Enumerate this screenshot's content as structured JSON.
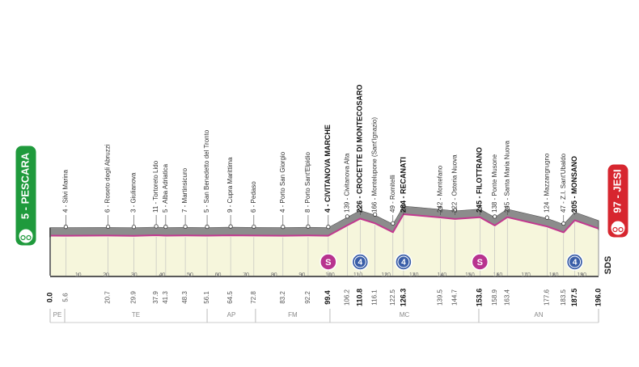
{
  "chart_data": {
    "type": "elevation-profile",
    "start": {
      "label": "5 - PESCARA",
      "altitude": 5,
      "km": 0,
      "km_label": "0.0",
      "major": true
    },
    "finish": {
      "label": "97 - JESI",
      "altitude": 97,
      "km": 196,
      "km_label": "196.0",
      "major": true
    },
    "locations": [
      {
        "label": "4 - Silvi Marina",
        "altitude": 4,
        "km": 5.6
      },
      {
        "label": "6 - Roseto degli Abruzzi",
        "altitude": 6,
        "km": 20.7
      },
      {
        "label": "3 - Giulianova",
        "altitude": 3,
        "km": 29.9
      },
      {
        "label": "11 - Tortoreto Lido",
        "altitude": 11,
        "km": 37.9
      },
      {
        "label": "5 - Alba Adriatica",
        "altitude": 5,
        "km": 41.3
      },
      {
        "label": "7 - Martinsicuro",
        "altitude": 7,
        "km": 48.3
      },
      {
        "label": "5 - San Benedetto del Tronto",
        "altitude": 5,
        "km": 56.1
      },
      {
        "label": "9 - Cupra Marittima",
        "altitude": 9,
        "km": 64.5
      },
      {
        "label": "6 - Pedaso",
        "altitude": 6,
        "km": 72.8
      },
      {
        "label": "4 - Porto San Giorgio",
        "altitude": 4,
        "km": 83.2
      },
      {
        "label": "8 - Porto Sant'Elpidio",
        "altitude": 8,
        "km": 92.2
      },
      {
        "label": "4 - CIVITANOVA MARCHE",
        "altitude": 4,
        "km": 99.4,
        "major": true
      },
      {
        "label": "139 - Civitanova Alta",
        "altitude": 139,
        "km": 106.2
      },
      {
        "label": "226 - CROCETTE DI MONTECOSARO",
        "altitude": 226,
        "km": 110.8,
        "major": true
      },
      {
        "label": "166 - Montelupone (Sant'Ignazio)",
        "altitude": 166,
        "km": 116.1
      },
      {
        "label": "49 - Romitelli",
        "altitude": 49,
        "km": 122.5
      },
      {
        "label": "284 - RECANATI",
        "altitude": 284,
        "km": 126.3,
        "major": true
      },
      {
        "label": "242 - Montefano",
        "altitude": 242,
        "km": 139.5
      },
      {
        "label": "222 - Osteria Nuova",
        "altitude": 222,
        "km": 144.7
      },
      {
        "label": "245 - FILOTTRANO",
        "altitude": 245,
        "km": 153.6,
        "major": true
      },
      {
        "label": "138 - Ponte Musone",
        "altitude": 138,
        "km": 158.9
      },
      {
        "label": "245 - Santa Maria Nuova",
        "altitude": 245,
        "km": 163.4
      },
      {
        "label": "124 - Mazzangrugno",
        "altitude": 124,
        "km": 177.6
      },
      {
        "label": "47 - Z.I. Sant'Ubaldo",
        "altitude": 47,
        "km": 183.5
      },
      {
        "label": "205 - MONSANO",
        "altitude": 205,
        "km": 187.5,
        "major": true
      }
    ],
    "xlim": [
      0,
      196
    ],
    "xticks": [
      10,
      20,
      30,
      40,
      50,
      60,
      70,
      80,
      90,
      100,
      110,
      120,
      130,
      140,
      150,
      160,
      170,
      180,
      190
    ],
    "sprints": [
      {
        "km": 99.4,
        "label": "S"
      },
      {
        "km": 153.6,
        "label": "S"
      }
    ],
    "climbs": [
      {
        "km": 110.8,
        "label": "4"
      },
      {
        "km": 126.3,
        "label": "4"
      },
      {
        "km": 187.5,
        "label": "4"
      }
    ],
    "provinces": [
      {
        "name": "PE",
        "from_km": 0,
        "to_km": 5.2
      },
      {
        "name": "TE",
        "from_km": 5.2,
        "to_km": 56.1
      },
      {
        "name": "AP",
        "from_km": 56.1,
        "to_km": 73.4
      },
      {
        "name": "FM",
        "from_km": 73.4,
        "to_km": 100
      },
      {
        "name": "MC",
        "from_km": 100,
        "to_km": 153.2
      },
      {
        "name": "AN",
        "from_km": 153.2,
        "to_km": 196
      }
    ],
    "logo": "SDS"
  }
}
